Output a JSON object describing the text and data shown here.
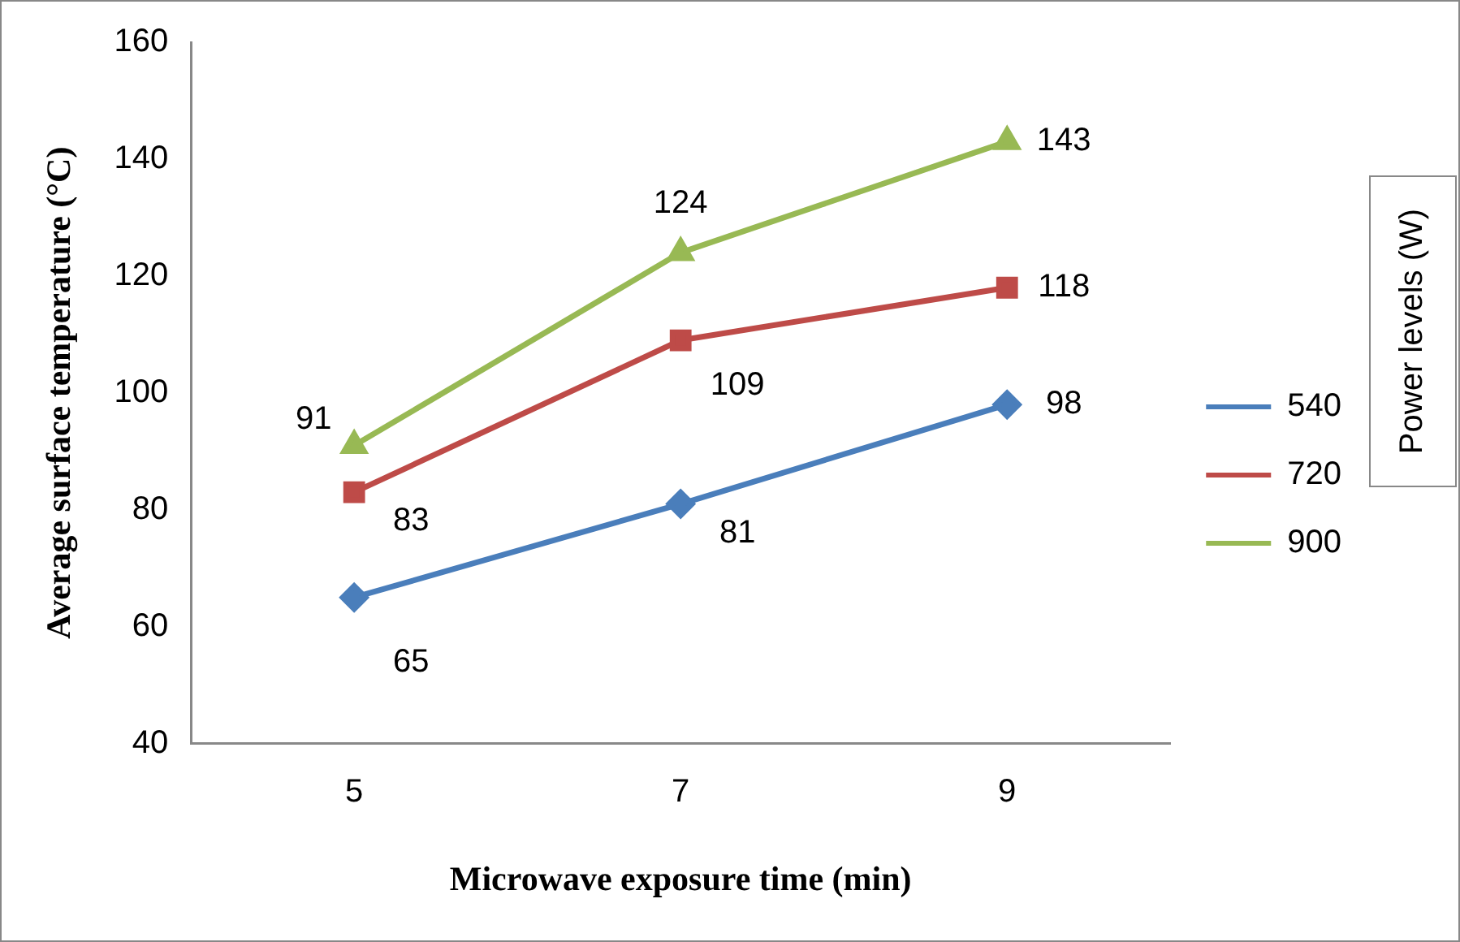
{
  "chart_data": {
    "type": "line",
    "xlabel": "Microwave exposure time (min)",
    "ylabel": "Average surface temperature (°C)",
    "legend_title": "Power levels (W)",
    "categories": [
      "5",
      "7",
      "9"
    ],
    "ylim": [
      40,
      160
    ],
    "yticks": [
      40,
      60,
      80,
      100,
      120,
      140,
      160
    ],
    "grid": false,
    "legend": "right",
    "data_labels": true,
    "line_style": "solid",
    "series": [
      {
        "name": "540",
        "color": "#4a7ebb",
        "marker": "diamond",
        "values": [
          65,
          81,
          98
        ]
      },
      {
        "name": "720",
        "color": "#be4b48",
        "marker": "square",
        "values": [
          83,
          109,
          118
        ]
      },
      {
        "name": "900",
        "color": "#98b954",
        "marker": "triangle",
        "values": [
          91,
          124,
          143
        ]
      }
    ]
  }
}
